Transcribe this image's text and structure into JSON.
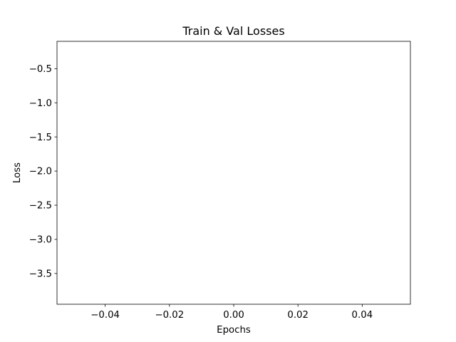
{
  "chart_data": {
    "type": "line",
    "title": "Train & Val Losses",
    "xlabel": "Epochs",
    "ylabel": "Loss",
    "xlim": [
      -0.055,
      0.055
    ],
    "ylim": [
      -3.95,
      -0.1
    ],
    "xticks": [
      -0.04,
      -0.02,
      0.0,
      0.02,
      0.04
    ],
    "xtick_labels": [
      "−0.04",
      "−0.02",
      "0.00",
      "0.02",
      "0.04"
    ],
    "yticks": [
      -0.5,
      -1.0,
      -1.5,
      -2.0,
      -2.5,
      -3.0,
      -3.5
    ],
    "ytick_labels": [
      "−0.5",
      "−1.0",
      "−1.5",
      "−2.0",
      "−2.5",
      "−3.0",
      "−3.5"
    ],
    "series": [],
    "grid": false,
    "legend": "none"
  }
}
